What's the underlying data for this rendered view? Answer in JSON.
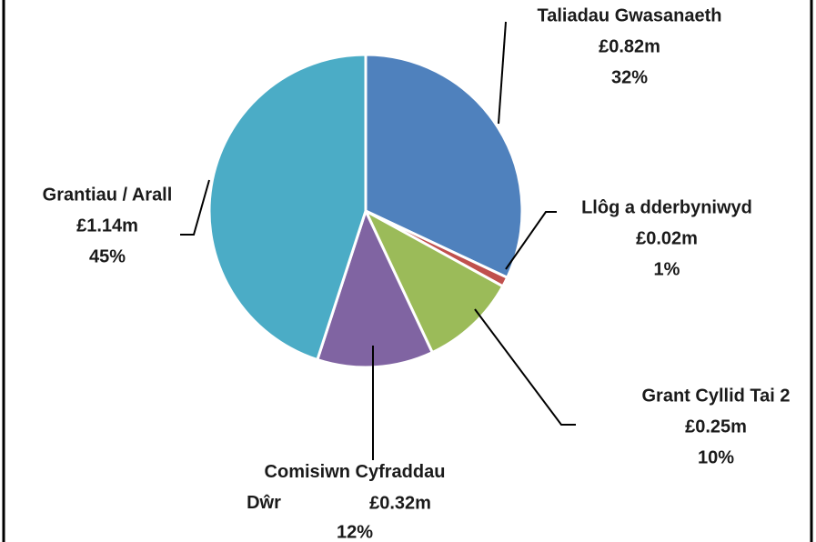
{
  "chart_data": {
    "type": "pie",
    "categories": [
      "Taliadau Gwasanaeth",
      "Llôg a dderbyniwyd",
      "Grant Cyllid Tai 2",
      "Comisiwn Cyfraddau Dŵr",
      "Grantiau / Arall"
    ],
    "amount_labels": [
      "£0.82m",
      "£0.02m",
      "£0.25m",
      "£0.32m",
      "£1.14m"
    ],
    "values": [
      32,
      1,
      10,
      12,
      45
    ],
    "value_labels": [
      "32%",
      "1%",
      "10%",
      "12%",
      "45%"
    ],
    "colors": [
      "#4f81bd",
      "#c0504d",
      "#9bbb59",
      "#8064a2",
      "#4bacc6"
    ]
  }
}
